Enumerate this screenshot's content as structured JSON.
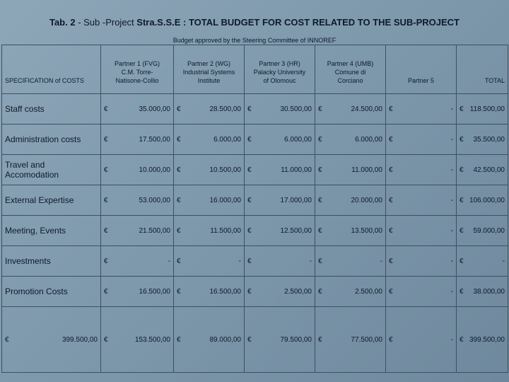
{
  "header": {
    "title_parts": [
      "Tab. 2",
      " - Sub -Project ",
      "Stra.S.S.E : TOTAL BUDGET FOR COST RELATED TO THE SUB-PROJECT"
    ],
    "subtitle": "Budget approved by the Steering Committee of INNOREF"
  },
  "table": {
    "currency": "€",
    "columns": [
      "SPECIFICATION of COSTS",
      "Partner 1 (FVG)\nC.M. Torre-\nNatisone-Collio",
      "Partner 2 (WG)\nIndustrial Systems\nInstitute",
      "Partner 3 (HR)\nPalacky University\nof Olomouc",
      "Partner 4 (UMB)\nComune di\nCorciano",
      "Partner 5",
      "TOTAL"
    ],
    "rows": [
      [
        "Staff costs",
        "35.000,00",
        "28.500,00",
        "30.500,00",
        "24.500,00",
        "-",
        "118.500,00"
      ],
      [
        "Administration costs",
        "17.500,00",
        "6.000,00",
        "6.000,00",
        "6.000,00",
        "-",
        "35.500,00"
      ],
      [
        "Travel and\nAccomodation",
        "10.000,00",
        "10.500,00",
        "11.000,00",
        "11.000,00",
        "-",
        "42.500,00"
      ],
      [
        "External Expertise",
        "53.000,00",
        "16.000,00",
        "17.000,00",
        "20.000,00",
        "-",
        "106.000,00"
      ],
      [
        "Meeting, Events",
        "21.500,00",
        "11.500,00",
        "12.500,00",
        "13.500,00",
        "-",
        "59.000,00"
      ],
      [
        "Investments",
        "-",
        "-",
        "-",
        "-",
        "-",
        "-"
      ],
      [
        "Promotion Costs",
        "16.500,00",
        "16.500,00",
        "2.500,00",
        "2.500,00",
        "-",
        "38.000,00"
      ],
      [
        "399.500,00",
        "153.500,00",
        "89.000,00",
        "79.500,00",
        "77.500,00",
        "-",
        "399.500,00"
      ]
    ]
  }
}
